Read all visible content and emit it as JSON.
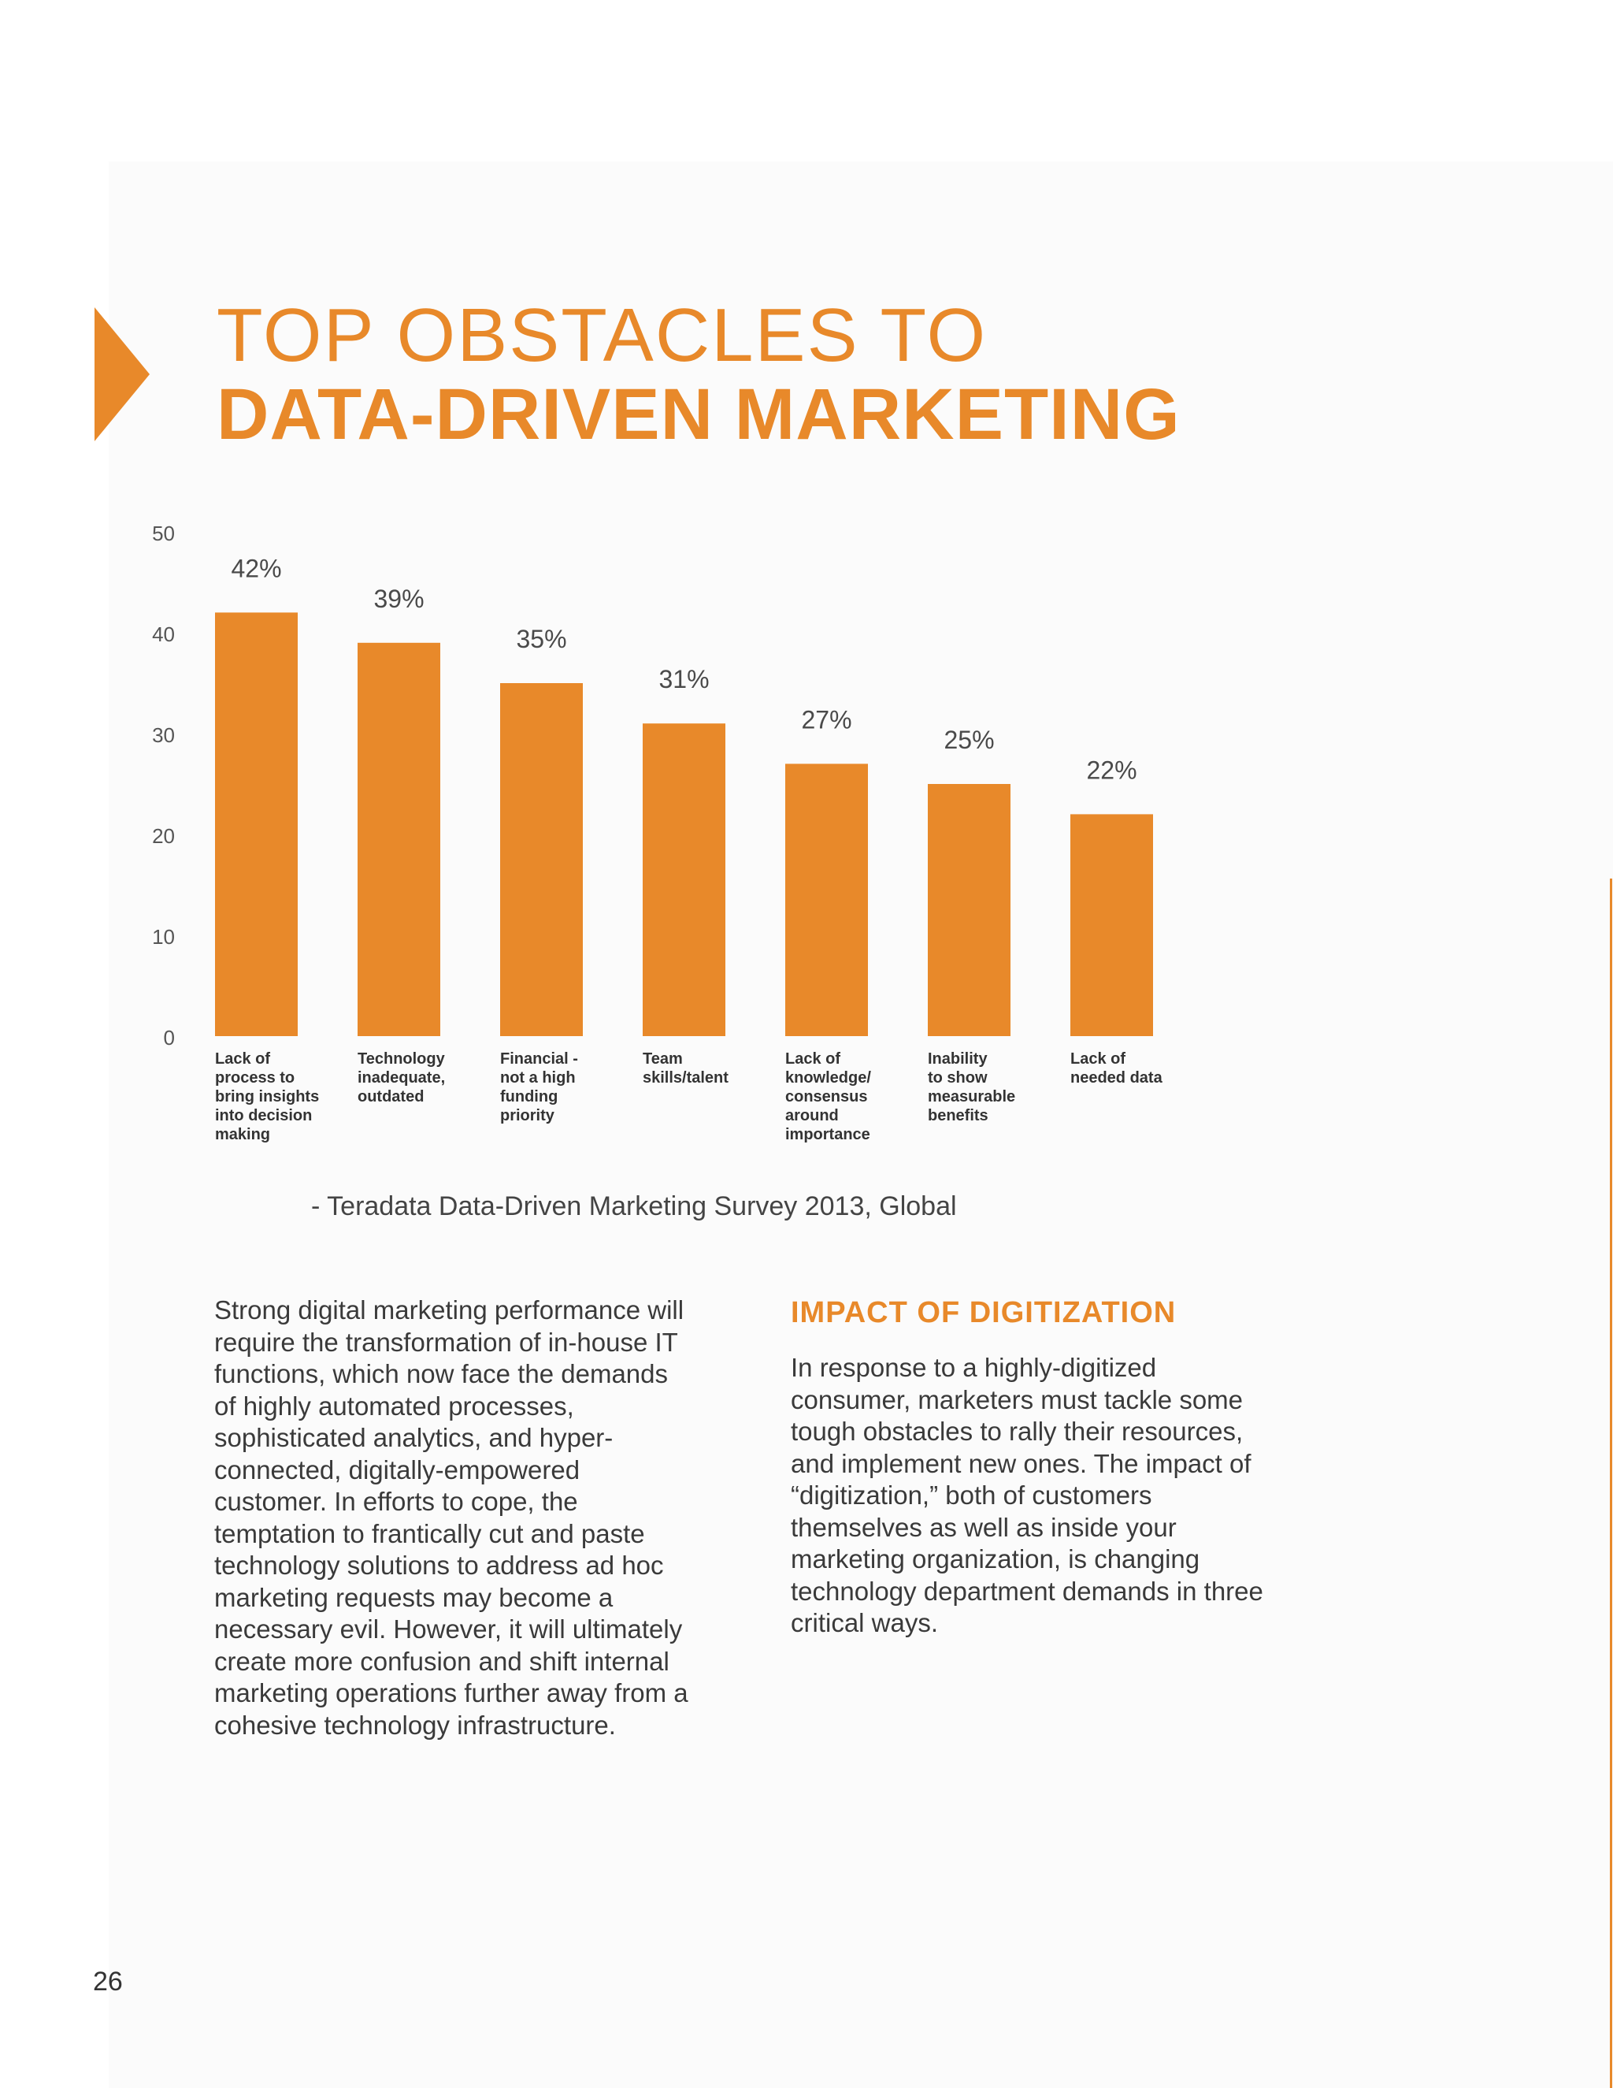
{
  "heading": {
    "line1": "TOP OBSTACLES TO",
    "line2": "DATA-DRIVEN MARKETING"
  },
  "colors": {
    "accent": "#e8892a",
    "text": "#3a3a3a"
  },
  "chart_data": {
    "type": "bar",
    "title": "TOP OBSTACLES TO DATA-DRIVEN MARKETING",
    "categories": [
      "Lack of process to bring insights into decision making",
      "Technology inadequate, outdated",
      "Financial - not a high funding priority",
      "Team skills/talent",
      "Lack of knowledge/ consensus around importance",
      "Inability to show measurable benefits",
      "Lack of needed data"
    ],
    "category_lines": [
      [
        "Lack of",
        "process to",
        "bring insights",
        "into decision",
        "making"
      ],
      [
        "Technology",
        "inadequate,",
        "outdated"
      ],
      [
        "Financial -",
        "not a high",
        "funding",
        "priority"
      ],
      [
        "Team",
        "skills/talent"
      ],
      [
        "Lack of",
        "knowledge/",
        "consensus",
        "around",
        "importance"
      ],
      [
        "Inability",
        "to show",
        "measurable",
        "benefits"
      ],
      [
        "Lack of",
        "needed data"
      ]
    ],
    "values": [
      42,
      39,
      35,
      31,
      27,
      25,
      22
    ],
    "value_labels": [
      "42%",
      "39%",
      "35%",
      "31%",
      "27%",
      "25%",
      "22%"
    ],
    "y_ticks": [
      0,
      10,
      20,
      30,
      40,
      50
    ],
    "ylim": [
      0,
      50
    ],
    "xlabel": "",
    "ylabel": "",
    "grid": false,
    "legend": "none",
    "bar_color": "#e8892a"
  },
  "source": "- Teradata Data-Driven Marketing Survey 2013, Global",
  "left_column": {
    "text": "Strong digital marketing performance will require the transformation of in-house IT functions, which now face the demands of highly automated processes, sophisticated analytics, and hyper-connected, digitally-empowered customer. In efforts to cope, the temptation to frantically cut and paste technology solutions to address ad hoc marketing requests may become a necessary evil. However, it will ultimately create more confusion and shift internal marketing operations further away from a cohesive technology infrastructure."
  },
  "right_column": {
    "heading": "IMPACT OF DIGITIZATION",
    "text": "In response to a highly-digitized consumer, marketers must tackle some tough obstacles to rally their resources, and implement new ones. The impact of “digitization,” both of customers themselves as well as inside your marketing organization, is changing technology department demands in three critical ways."
  },
  "page_number": "26"
}
